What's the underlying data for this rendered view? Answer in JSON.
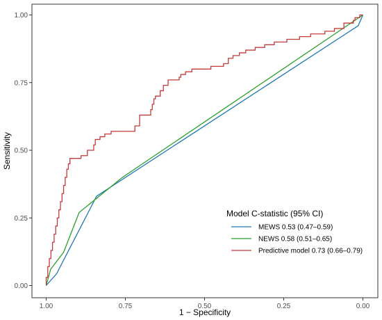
{
  "chart_data": {
    "type": "line",
    "title": "",
    "xlabel": "1 − Specificity",
    "ylabel": "Sensitivity",
    "xlim": [
      1.0,
      0.0
    ],
    "ylim": [
      0.0,
      1.0
    ],
    "x_reversed": true,
    "grid": false,
    "x_ticks": [
      "1.00",
      "0.75",
      "0.50",
      "0.25",
      "0.00"
    ],
    "x_tick_values": [
      1.0,
      0.75,
      0.5,
      0.25,
      0.0
    ],
    "y_ticks": [
      "0.00",
      "0.25",
      "0.50",
      "0.75",
      "1.00"
    ],
    "y_tick_values": [
      0.0,
      0.25,
      0.5,
      0.75,
      1.0
    ],
    "legend": {
      "title": "Model C-statistic (95% CI)",
      "placement": "bottom-right"
    },
    "series": [
      {
        "name": "MEWS",
        "label": "MEWS  0.53 (0.47–0.59)",
        "color": "#1f77b4",
        "style": "linear",
        "points": [
          [
            1.0,
            0.0
          ],
          [
            0.967,
            0.044
          ],
          [
            0.841,
            0.33
          ],
          [
            0.015,
            0.96
          ],
          [
            0.0,
            1.0
          ]
        ]
      },
      {
        "name": "NEWS",
        "label": "NEWS  0.58 (0.51–0.65)",
        "color": "#2ca02c",
        "style": "linear",
        "points": [
          [
            1.0,
            0.0
          ],
          [
            0.986,
            0.06
          ],
          [
            0.945,
            0.123
          ],
          [
            0.896,
            0.27
          ],
          [
            0.759,
            0.4
          ],
          [
            0.0,
            1.0
          ]
        ]
      },
      {
        "name": "Predictive model",
        "label": "Predictive model  0.73 (0.66–0.79)",
        "color": "#c23b3b",
        "style": "step",
        "points": [
          [
            1.0,
            0.0
          ],
          [
            0.995,
            0.03
          ],
          [
            0.99,
            0.07
          ],
          [
            0.985,
            0.1
          ],
          [
            0.98,
            0.13
          ],
          [
            0.975,
            0.16
          ],
          [
            0.97,
            0.19
          ],
          [
            0.965,
            0.22
          ],
          [
            0.96,
            0.25
          ],
          [
            0.955,
            0.28
          ],
          [
            0.95,
            0.31
          ],
          [
            0.945,
            0.34
          ],
          [
            0.94,
            0.37
          ],
          [
            0.935,
            0.4
          ],
          [
            0.93,
            0.43
          ],
          [
            0.925,
            0.45
          ],
          [
            0.92,
            0.47
          ],
          [
            0.89,
            0.47
          ],
          [
            0.885,
            0.48
          ],
          [
            0.87,
            0.48
          ],
          [
            0.865,
            0.5
          ],
          [
            0.85,
            0.5
          ],
          [
            0.845,
            0.52
          ],
          [
            0.84,
            0.54
          ],
          [
            0.83,
            0.54
          ],
          [
            0.825,
            0.55
          ],
          [
            0.815,
            0.55
          ],
          [
            0.81,
            0.56
          ],
          [
            0.795,
            0.56
          ],
          [
            0.79,
            0.57
          ],
          [
            0.72,
            0.57
          ],
          [
            0.715,
            0.59
          ],
          [
            0.705,
            0.59
          ],
          [
            0.7,
            0.63
          ],
          [
            0.67,
            0.63
          ],
          [
            0.665,
            0.65
          ],
          [
            0.66,
            0.67
          ],
          [
            0.655,
            0.69
          ],
          [
            0.65,
            0.7
          ],
          [
            0.64,
            0.7
          ],
          [
            0.635,
            0.72
          ],
          [
            0.63,
            0.72
          ],
          [
            0.625,
            0.74
          ],
          [
            0.615,
            0.74
          ],
          [
            0.61,
            0.76
          ],
          [
            0.58,
            0.76
          ],
          [
            0.575,
            0.77
          ],
          [
            0.56,
            0.78
          ],
          [
            0.555,
            0.79
          ],
          [
            0.54,
            0.79
          ],
          [
            0.535,
            0.8
          ],
          [
            0.48,
            0.8
          ],
          [
            0.475,
            0.81
          ],
          [
            0.44,
            0.81
          ],
          [
            0.435,
            0.82
          ],
          [
            0.425,
            0.82
          ],
          [
            0.42,
            0.84
          ],
          [
            0.41,
            0.84
          ],
          [
            0.405,
            0.85
          ],
          [
            0.39,
            0.85
          ],
          [
            0.385,
            0.86
          ],
          [
            0.37,
            0.86
          ],
          [
            0.365,
            0.87
          ],
          [
            0.34,
            0.87
          ],
          [
            0.335,
            0.88
          ],
          [
            0.31,
            0.88
          ],
          [
            0.305,
            0.89
          ],
          [
            0.28,
            0.89
          ],
          [
            0.275,
            0.9
          ],
          [
            0.24,
            0.9
          ],
          [
            0.235,
            0.91
          ],
          [
            0.2,
            0.91
          ],
          [
            0.195,
            0.92
          ],
          [
            0.165,
            0.92
          ],
          [
            0.16,
            0.93
          ],
          [
            0.12,
            0.93
          ],
          [
            0.115,
            0.94
          ],
          [
            0.09,
            0.94
          ],
          [
            0.085,
            0.95
          ],
          [
            0.06,
            0.95
          ],
          [
            0.055,
            0.97
          ],
          [
            0.03,
            0.97
          ],
          [
            0.025,
            0.98
          ],
          [
            0.02,
            0.99
          ],
          [
            0.01,
            0.99
          ],
          [
            0.005,
            1.0
          ],
          [
            0.0,
            1.0
          ]
        ]
      }
    ]
  }
}
